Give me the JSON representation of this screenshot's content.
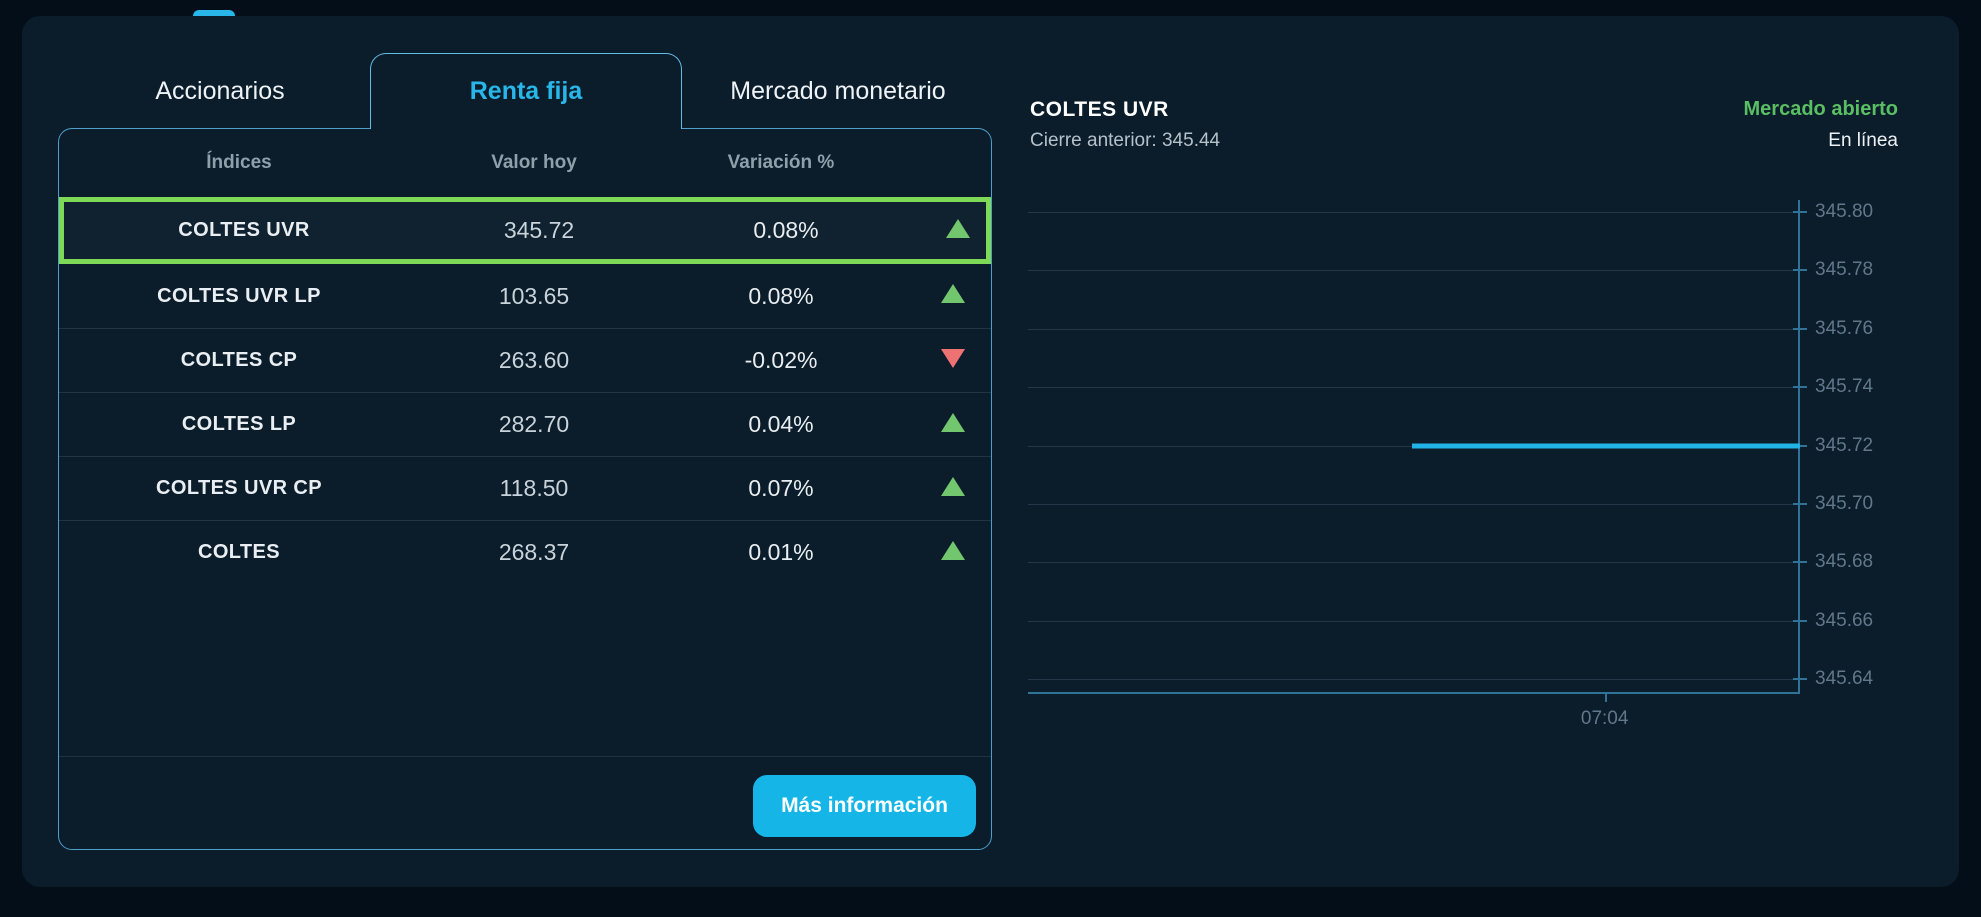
{
  "tabs": [
    {
      "label": "Accionarios",
      "active": false
    },
    {
      "label": "Renta fija",
      "active": true
    },
    {
      "label": "Mercado monetario",
      "active": false
    }
  ],
  "table": {
    "headers": [
      "Índices",
      "Valor hoy",
      "Variación %"
    ],
    "rows": [
      {
        "name": "COLTES UVR",
        "value": "345.72",
        "variation": "0.08%",
        "direction": "up",
        "highlighted": true
      },
      {
        "name": "COLTES UVR LP",
        "value": "103.65",
        "variation": "0.08%",
        "direction": "up",
        "highlighted": false
      },
      {
        "name": "COLTES CP",
        "value": "263.60",
        "variation": "-0.02%",
        "direction": "down",
        "highlighted": false
      },
      {
        "name": "COLTES LP",
        "value": "282.70",
        "variation": "0.04%",
        "direction": "up",
        "highlighted": false
      },
      {
        "name": "COLTES UVR CP",
        "value": "118.50",
        "variation": "0.07%",
        "direction": "up",
        "highlighted": false
      },
      {
        "name": "COLTES",
        "value": "268.37",
        "variation": "0.01%",
        "direction": "up",
        "highlighted": false
      }
    ],
    "more_info_label": "Más información"
  },
  "chart_header": {
    "title": "COLTES UVR",
    "previous_close": "Cierre anterior: 345.44",
    "market_status": "Mercado abierto",
    "online_status": "En línea"
  },
  "chart_data": {
    "type": "line",
    "title": "COLTES UVR",
    "previous_close": 345.44,
    "series": [
      {
        "name": "COLTES UVR",
        "value": 345.72,
        "x_start_frac": 0.497,
        "x_end_frac": 1.0
      }
    ],
    "y_ticks": [
      345.8,
      345.78,
      345.76,
      345.74,
      345.72,
      345.7,
      345.68,
      345.66,
      345.64
    ],
    "y_tick_labels": [
      "345.80",
      "345.78",
      "345.76",
      "345.74",
      "345.72",
      "345.70",
      "345.68",
      "345.66",
      "345.64"
    ],
    "ylim": [
      345.635,
      345.804
    ],
    "x_ticks": [
      {
        "label": "07:04",
        "frac": 0.747
      }
    ],
    "grid": true,
    "legend": false,
    "axis_position": "right"
  },
  "colors": {
    "accent_cyan": "#29b6e8",
    "button_cyan": "#16b5e8",
    "highlight_green": "#7ed957",
    "up_green": "#72c76e",
    "down_red": "#ef7272",
    "status_green": "#5abf63",
    "data_line": "#21b2e6",
    "card_bg": "#0b1c2b",
    "page_bg": "#030e18"
  }
}
